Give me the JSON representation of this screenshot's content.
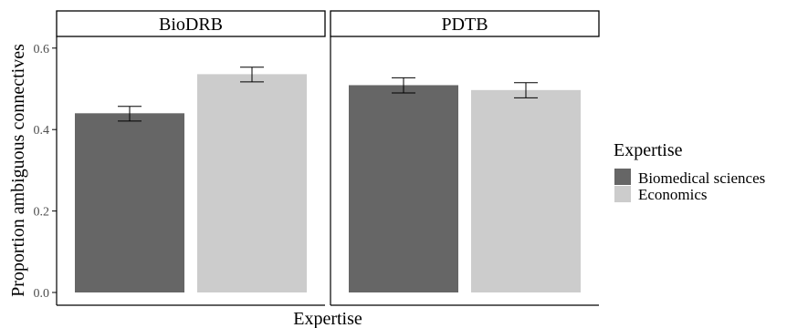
{
  "chart_data": {
    "type": "bar",
    "ylabel": "Proportion ambiguous connectives",
    "xlabel": "Expertise",
    "ylim": [
      0,
      0.63
    ],
    "yticks": [
      "0.0",
      "0.2",
      "0.4",
      "0.6"
    ],
    "ytick_values": [
      0,
      0.2,
      0.4,
      0.6
    ],
    "grid": false,
    "legend_position": "right",
    "legend": {
      "title": "Expertise",
      "entries": [
        {
          "label": "Biomedical sciences",
          "color": "#666666"
        },
        {
          "label": "Economics",
          "color": "#cccccc"
        }
      ]
    },
    "facets": [
      {
        "title": "BioDRB",
        "bars": [
          {
            "series": "Biomedical sciences",
            "value": 0.44,
            "error_low": 0.421,
            "error_high": 0.457
          },
          {
            "series": "Economics",
            "value": 0.536,
            "error_low": 0.517,
            "error_high": 0.553
          }
        ]
      },
      {
        "title": "PDTB",
        "bars": [
          {
            "series": "Biomedical sciences",
            "value": 0.509,
            "error_low": 0.49,
            "error_high": 0.527
          },
          {
            "series": "Economics",
            "value": 0.497,
            "error_low": 0.478,
            "error_high": 0.515
          }
        ]
      }
    ]
  }
}
